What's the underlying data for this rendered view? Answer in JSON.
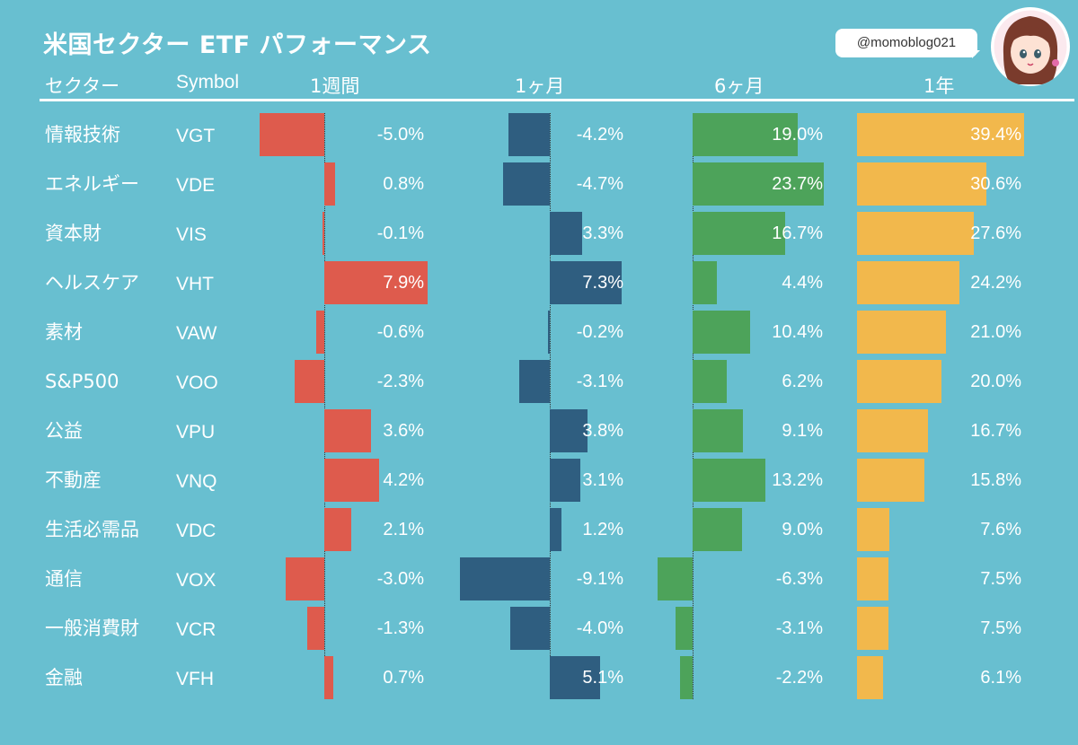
{
  "page": {
    "title": "米国セクター ETF パフォーマンス",
    "handle": "@momoblog021",
    "avatar_icon": "anime-girl-avatar"
  },
  "headers": {
    "sector": "セクター",
    "symbol": "Symbol",
    "week": "1週間",
    "month": "1ヶ月",
    "six_month": "6ヶ月",
    "year": "1年"
  },
  "colors": {
    "background": "#68bfd0",
    "week": "#de5b4d",
    "month": "#2f5e80",
    "six_month": "#4da35a",
    "year": "#f2b84c",
    "text": "#ffffff"
  },
  "chart_data": {
    "type": "bar",
    "orientation": "horizontal",
    "unit": "%",
    "categories": [
      "情報技術",
      "エネルギー",
      "資本財",
      "ヘルスケア",
      "素材",
      "S&P500",
      "公益",
      "不動産",
      "生活必需品",
      "通信",
      "一般消費財",
      "金融"
    ],
    "symbols": [
      "VGT",
      "VDE",
      "VIS",
      "VHT",
      "VAW",
      "VOO",
      "VPU",
      "VNQ",
      "VDC",
      "VOX",
      "VCR",
      "VFH"
    ],
    "series": [
      {
        "name": "1週間",
        "values": [
          -5.0,
          0.8,
          -0.1,
          7.9,
          -0.6,
          -2.3,
          3.6,
          4.2,
          2.1,
          -3.0,
          -1.3,
          0.7
        ]
      },
      {
        "name": "1ヶ月",
        "values": [
          -4.2,
          -4.7,
          3.3,
          7.3,
          -0.2,
          -3.1,
          3.8,
          3.1,
          1.2,
          -9.1,
          -4.0,
          5.1
        ]
      },
      {
        "name": "6ヶ月",
        "values": [
          19.0,
          23.7,
          16.7,
          4.4,
          10.4,
          6.2,
          9.1,
          13.2,
          9.0,
          -6.3,
          -3.1,
          -2.2
        ]
      },
      {
        "name": "1年",
        "values": [
          39.4,
          30.6,
          27.6,
          24.2,
          21.0,
          20.0,
          16.7,
          15.8,
          7.6,
          7.5,
          7.5,
          6.1
        ]
      }
    ],
    "labels": [
      [
        "-5.0%",
        "0.8%",
        "-0.1%",
        "7.9%",
        "-0.6%",
        "-2.3%",
        "3.6%",
        "4.2%",
        "2.1%",
        "-3.0%",
        "-1.3%",
        "0.7%"
      ],
      [
        "-4.2%",
        "-4.7%",
        "3.3%",
        "7.3%",
        "-0.2%",
        "-3.1%",
        "3.8%",
        "3.1%",
        "1.2%",
        "-9.1%",
        "-4.0%",
        "5.1%"
      ],
      [
        "19.0%",
        "23.7%",
        "16.7%",
        "4.4%",
        "10.4%",
        "6.2%",
        "9.1%",
        "13.2%",
        "9.0%",
        "-6.3%",
        "-3.1%",
        "-2.2%"
      ],
      [
        "39.4%",
        "30.6%",
        "27.6%",
        "24.2%",
        "21.0%",
        "20.0%",
        "16.7%",
        "15.8%",
        "7.6%",
        "7.5%",
        "7.5%",
        "6.1%"
      ]
    ]
  }
}
